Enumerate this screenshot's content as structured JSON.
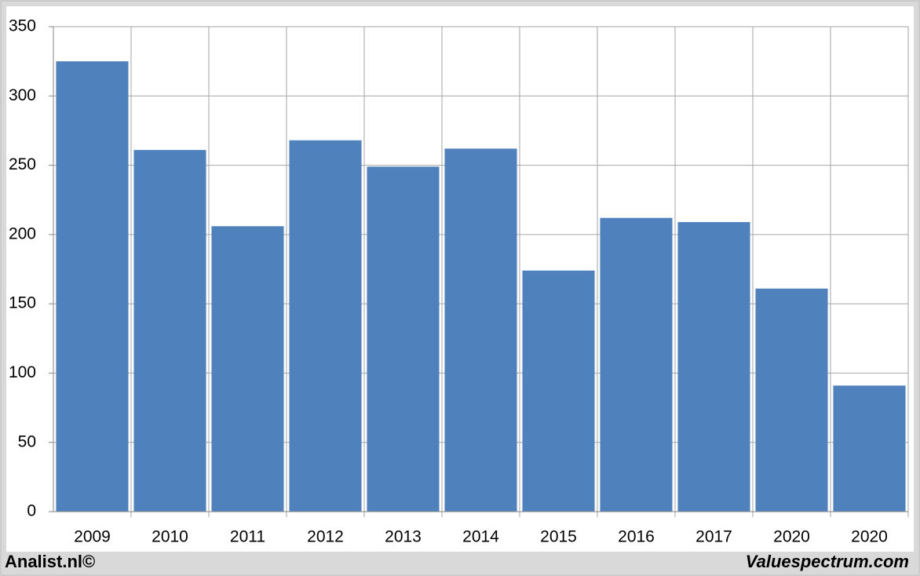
{
  "chart_data": {
    "type": "bar",
    "categories": [
      "2009",
      "2010",
      "2011",
      "2012",
      "2013",
      "2014",
      "2015",
      "2016",
      "2017",
      "2020",
      "2020"
    ],
    "values": [
      325,
      261,
      206,
      268,
      249,
      262,
      174,
      212,
      209,
      161,
      91
    ],
    "color": "#4f81bd",
    "ylim": [
      0,
      350
    ],
    "yticks": [
      0,
      50,
      100,
      150,
      200,
      250,
      300,
      350
    ],
    "grid": true
  },
  "footer": {
    "left": "Analist.nl©",
    "right": "Valuespectrum.com"
  }
}
